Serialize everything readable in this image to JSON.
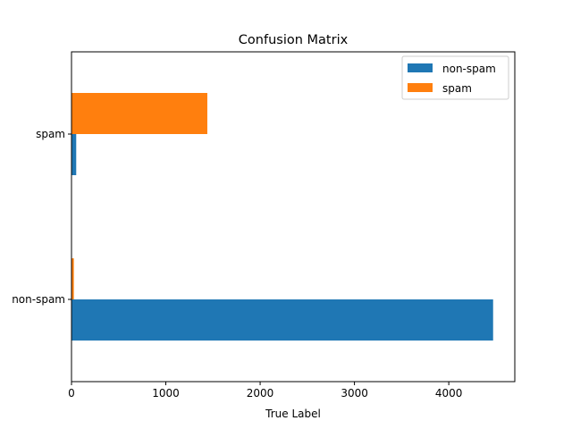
{
  "chart_data": {
    "type": "bar",
    "orientation": "horizontal",
    "title": "Confusion Matrix",
    "xlabel": "True Label",
    "ylabel": "",
    "xlim": [
      0,
      4700
    ],
    "xticks": [
      0,
      1000,
      2000,
      3000,
      4000
    ],
    "categories": [
      "non-spam",
      "spam"
    ],
    "series": [
      {
        "name": "non-spam",
        "color": "#1f77b4",
        "values": [
          4470,
          50
        ]
      },
      {
        "name": "spam",
        "color": "#ff7f0e",
        "values": [
          25,
          1440
        ]
      }
    ],
    "legend": {
      "position": "top-right"
    },
    "grid": false
  }
}
